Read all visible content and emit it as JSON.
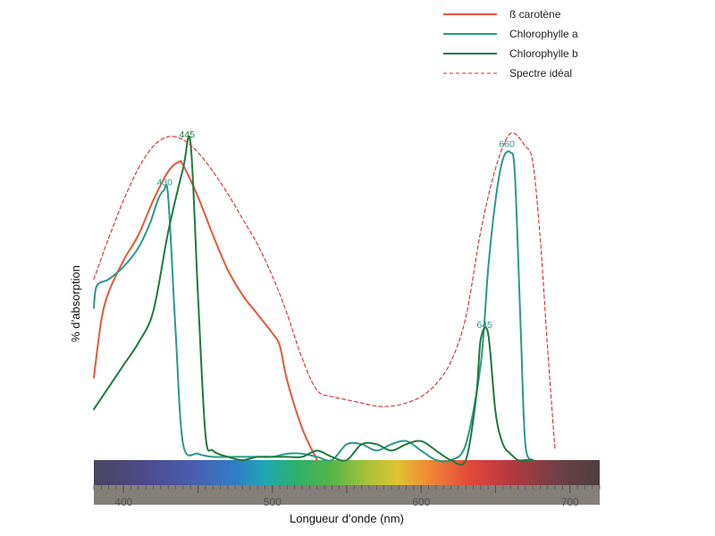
{
  "chart_data": {
    "type": "line",
    "xlabel": "Longueur d’onde (nm)",
    "ylabel": "% d’absorption",
    "xlim": [
      380,
      720
    ],
    "ylim": [
      0,
      100
    ],
    "x_ticks": [
      400,
      500,
      600,
      700
    ],
    "grid": false,
    "legend_position": "top-right",
    "series": [
      {
        "name": "ß carotène",
        "color": "#e8573a",
        "style": "solid",
        "x": [
          380,
          385,
          390,
          400,
          410,
          420,
          430,
          437,
          440,
          450,
          460,
          470,
          480,
          490,
          500,
          505,
          510,
          520,
          530
        ],
        "y": [
          26,
          44,
          53,
          63,
          71,
          82,
          91,
          94,
          93,
          83,
          71,
          60,
          52,
          46,
          40,
          36,
          25,
          10,
          0
        ]
      },
      {
        "name": "Chlorophylle a",
        "color": "#2a9a8a",
        "style": "solid",
        "x": [
          380,
          382,
          390,
          400,
          410,
          418,
          423,
          427,
          430,
          435,
          440,
          450,
          460,
          470,
          480,
          490,
          500,
          510,
          520,
          530,
          540,
          550,
          560,
          570,
          580,
          590,
          600,
          610,
          620,
          630,
          640,
          645,
          650,
          655,
          660,
          663,
          667,
          670,
          675
        ],
        "y": [
          48,
          55,
          57,
          61,
          67,
          75,
          82,
          85,
          83,
          40,
          5,
          2,
          1,
          1,
          1,
          1,
          1,
          2,
          2,
          1,
          0,
          5,
          5,
          3,
          5,
          6,
          3,
          0,
          0,
          5,
          30,
          60,
          82,
          95,
          97,
          90,
          40,
          5,
          0
        ]
      },
      {
        "name": "Chlorophylle b",
        "color": "#1f7a40",
        "style": "solid",
        "x": [
          380,
          390,
          400,
          410,
          420,
          430,
          440,
          445,
          450,
          455,
          460,
          470,
          480,
          490,
          500,
          510,
          520,
          530,
          540,
          550,
          560,
          570,
          580,
          590,
          600,
          610,
          620,
          630,
          637,
          640,
          645,
          650,
          655,
          660,
          665,
          670,
          675
        ],
        "y": [
          16,
          23,
          30,
          37,
          47,
          72,
          92,
          100,
          52,
          8,
          3,
          1,
          0,
          1,
          1,
          1,
          1,
          3,
          1,
          0,
          5,
          5,
          3,
          5,
          6,
          3,
          0,
          0,
          20,
          38,
          40,
          15,
          5,
          2,
          0,
          0,
          0
        ]
      },
      {
        "name": "Spectre idéal",
        "color": "#d82a2a",
        "style": "dashed",
        "x": [
          380,
          390,
          400,
          410,
          420,
          430,
          440,
          450,
          460,
          470,
          480,
          490,
          500,
          510,
          520,
          530,
          540,
          550,
          560,
          570,
          580,
          590,
          600,
          610,
          620,
          630,
          640,
          650,
          660,
          670,
          675,
          680,
          685,
          690
        ],
        "y": [
          57,
          70,
          82,
          92,
          99,
          102,
          101,
          97,
          91,
          84,
          76,
          68,
          58,
          46,
          32,
          22,
          20,
          19,
          18,
          17,
          17,
          18,
          20,
          24,
          31,
          45,
          72,
          92,
          103,
          99,
          94,
          70,
          35,
          3
        ]
      }
    ],
    "annotations": [
      {
        "text": "430",
        "x": 430,
        "y": 85,
        "color": "#2a9a8a"
      },
      {
        "text": "445",
        "x": 445,
        "y": 100,
        "color": "#1f7a40"
      },
      {
        "text": "645",
        "x": 645,
        "y": 40,
        "color": "#2a9a8a"
      },
      {
        "text": "660",
        "x": 660,
        "y": 97,
        "color": "#2a9a8a"
      }
    ]
  }
}
